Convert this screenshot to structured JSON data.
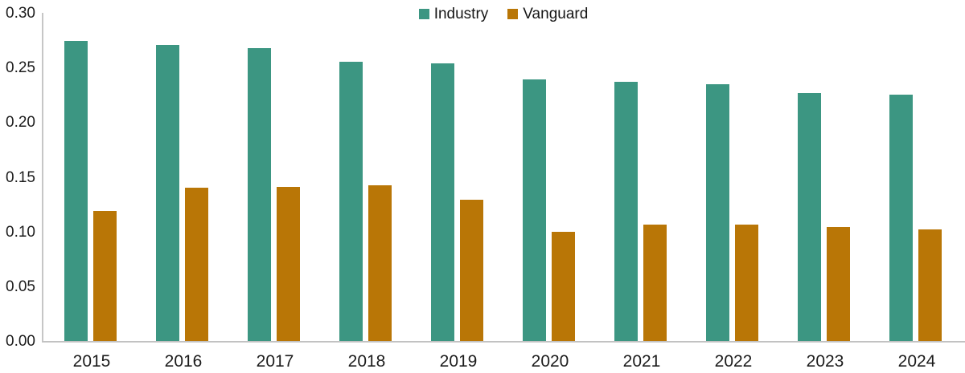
{
  "chart_data": {
    "type": "bar",
    "title": "",
    "xlabel": "",
    "ylabel": "",
    "categories": [
      "2015",
      "2016",
      "2017",
      "2018",
      "2019",
      "2020",
      "2021",
      "2022",
      "2023",
      "2024"
    ],
    "series": [
      {
        "name": "Industry",
        "color": "#3c9682",
        "values": [
          0.274,
          0.271,
          0.268,
          0.255,
          0.254,
          0.239,
          0.237,
          0.235,
          0.227,
          0.225
        ]
      },
      {
        "name": "Vanguard",
        "color": "#b97606",
        "values": [
          0.119,
          0.14,
          0.141,
          0.142,
          0.129,
          0.1,
          0.106,
          0.106,
          0.104,
          0.102
        ]
      }
    ],
    "ylim": [
      0,
      0.3
    ],
    "yticks": [
      {
        "value": 0.0,
        "label": "0.00"
      },
      {
        "value": 0.05,
        "label": "0.05"
      },
      {
        "value": 0.1,
        "label": "0.10"
      },
      {
        "value": 0.15,
        "label": "0.15"
      },
      {
        "value": 0.2,
        "label": "0.20"
      },
      {
        "value": 0.25,
        "label": "0.25"
      },
      {
        "value": 0.3,
        "label": "0.30"
      }
    ],
    "grid": false,
    "legend_position": "top-center",
    "axis_color": "#c6c6c6",
    "text_color": "#1c1c1c"
  }
}
